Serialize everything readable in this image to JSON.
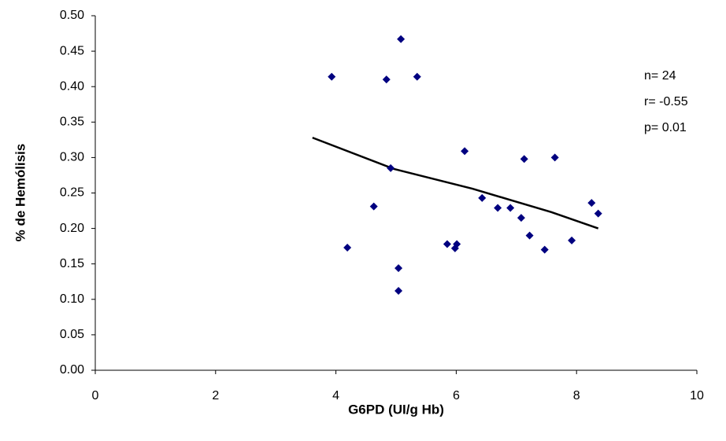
{
  "chart_data": {
    "type": "scatter",
    "xlabel": "G6PD (UI/g Hb)",
    "ylabel": "% de Hemólisis",
    "x": [
      3.93,
      5.08,
      4.84,
      5.35,
      6.14,
      4.91,
      7.13,
      7.64,
      4.63,
      6.43,
      6.69,
      6.9,
      7.08,
      8.25,
      8.36,
      4.19,
      5.85,
      6.01,
      5.98,
      7.22,
      7.47,
      7.92,
      5.04,
      5.04
    ],
    "values": [
      0.414,
      0.467,
      0.41,
      0.414,
      0.309,
      0.285,
      0.298,
      0.3,
      0.231,
      0.243,
      0.229,
      0.229,
      0.215,
      0.236,
      0.221,
      0.173,
      0.178,
      0.178,
      0.172,
      0.19,
      0.17,
      0.183,
      0.144,
      0.112
    ],
    "color": "#000080",
    "trendline": {
      "x": [
        3.61,
        4.96,
        6.27,
        7.58,
        8.36
      ],
      "values": [
        0.328,
        0.284,
        0.256,
        0.223,
        0.2
      ],
      "color": "#000000"
    },
    "annotations": [
      "n= 24",
      "r= -0.55",
      "p= 0.01"
    ],
    "xlim": [
      0,
      10
    ],
    "xticks": [
      0,
      2,
      4,
      6,
      8,
      10
    ],
    "ylim": [
      0,
      0.5
    ],
    "yticks": [
      {
        "value": 0,
        "label": "0.00"
      },
      {
        "value": 0.05,
        "label": "0.05"
      },
      {
        "value": 0.1,
        "label": "0.10"
      },
      {
        "value": 0.15,
        "label": "0.15"
      },
      {
        "value": 0.2,
        "label": "0.20"
      },
      {
        "value": 0.25,
        "label": "0.25"
      },
      {
        "value": 0.3,
        "label": "0.30"
      },
      {
        "value": 0.35,
        "label": "0.35"
      },
      {
        "value": 0.4,
        "label": "0.40"
      },
      {
        "value": 0.45,
        "label": "0.45"
      },
      {
        "value": 0.5,
        "label": "0.50"
      }
    ],
    "grid": false
  }
}
